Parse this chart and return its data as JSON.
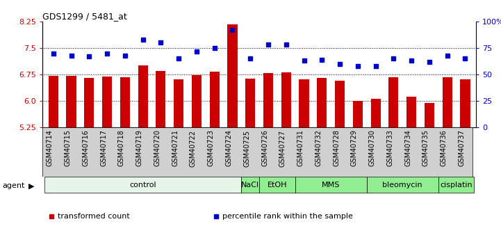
{
  "title": "GDS1299 / 5481_at",
  "samples": [
    "GSM40714",
    "GSM40715",
    "GSM40716",
    "GSM40717",
    "GSM40718",
    "GSM40719",
    "GSM40720",
    "GSM40721",
    "GSM40722",
    "GSM40723",
    "GSM40724",
    "GSM40725",
    "GSM40726",
    "GSM40727",
    "GSM40731",
    "GSM40732",
    "GSM40728",
    "GSM40729",
    "GSM40730",
    "GSM40733",
    "GSM40734",
    "GSM40735",
    "GSM40736",
    "GSM40737"
  ],
  "bar_values": [
    6.7,
    6.7,
    6.65,
    6.68,
    6.67,
    7.0,
    6.85,
    6.62,
    6.73,
    6.83,
    8.18,
    6.63,
    6.78,
    6.8,
    6.62,
    6.65,
    6.57,
    6.0,
    6.05,
    6.67,
    6.12,
    5.93,
    6.67,
    6.62
  ],
  "percentile_values": [
    70,
    68,
    67,
    70,
    68,
    83,
    80,
    65,
    72,
    75,
    92,
    65,
    78,
    78,
    63,
    64,
    60,
    58,
    58,
    65,
    63,
    62,
    68,
    65
  ],
  "ylim_left": [
    5.25,
    8.25
  ],
  "ylim_right": [
    0,
    100
  ],
  "yticks_left": [
    5.25,
    6.0,
    6.75,
    7.5,
    8.25
  ],
  "yticks_right": [
    0,
    25,
    50,
    75,
    100
  ],
  "ytick_labels_right": [
    "0",
    "25",
    "50",
    "75",
    "100%"
  ],
  "hlines": [
    7.5,
    6.75,
    6.0
  ],
  "agent_groups": [
    {
      "label": "control",
      "start": 0,
      "end": 11,
      "color": "#e8f5e9"
    },
    {
      "label": "NaCl",
      "start": 11,
      "end": 12,
      "color": "#90ee90"
    },
    {
      "label": "EtOH",
      "start": 12,
      "end": 14,
      "color": "#90ee90"
    },
    {
      "label": "MMS",
      "start": 14,
      "end": 18,
      "color": "#90ee90"
    },
    {
      "label": "bleomycin",
      "start": 18,
      "end": 22,
      "color": "#90ee90"
    },
    {
      "label": "cisplatin",
      "start": 22,
      "end": 24,
      "color": "#90ee90"
    }
  ],
  "bar_color": "#cc0000",
  "dot_color": "#0000cc",
  "bar_width": 0.55,
  "legend_items": [
    {
      "label": "transformed count",
      "color": "#cc0000"
    },
    {
      "label": "percentile rank within the sample",
      "color": "#0000cc"
    }
  ],
  "agent_label": "agent",
  "left_axis_color": "#cc0000",
  "right_axis_color": "#0000cc",
  "tick_fontsize": 8,
  "sample_fontsize": 7,
  "title_fontsize": 9,
  "legend_fontsize": 8,
  "agent_fontsize": 8,
  "group_fontsize": 8
}
